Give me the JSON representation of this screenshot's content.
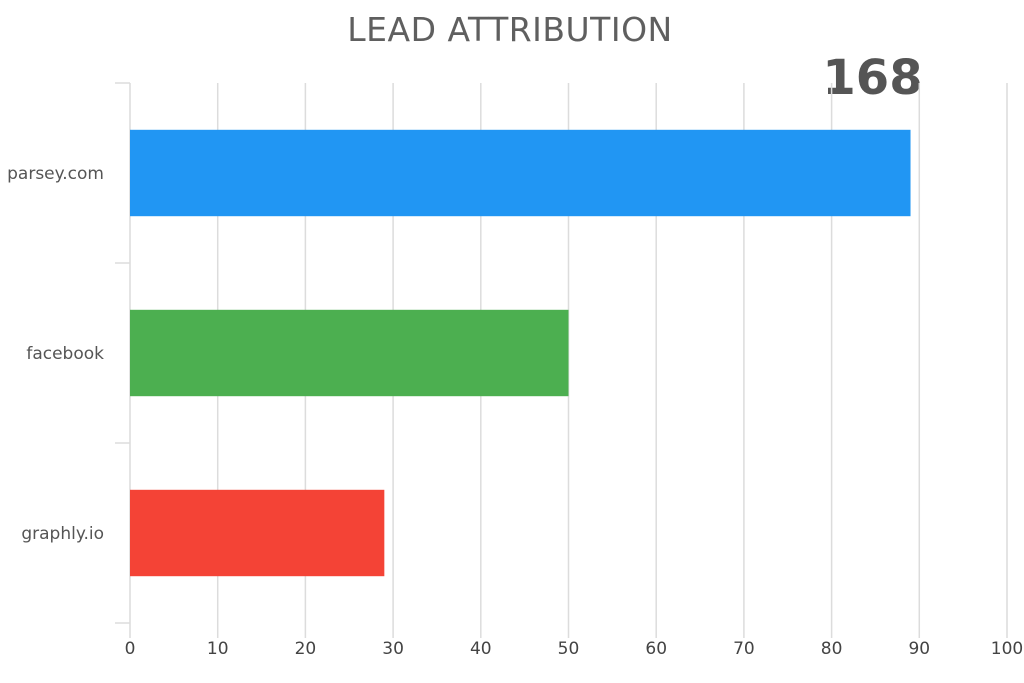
{
  "chart_data": {
    "type": "bar",
    "orientation": "horizontal",
    "title": "LEAD ATTRIBUTION",
    "total": "168",
    "categories": [
      "parsey.com",
      "facebook",
      "graphly.io"
    ],
    "values": [
      89,
      50,
      29
    ],
    "colors": [
      "#2196F3",
      "#4CAF50",
      "#F44336"
    ],
    "xlim": [
      0,
      100
    ],
    "xticks": [
      0,
      10,
      20,
      30,
      40,
      50,
      60,
      70,
      80,
      90,
      100
    ],
    "grid": true
  }
}
